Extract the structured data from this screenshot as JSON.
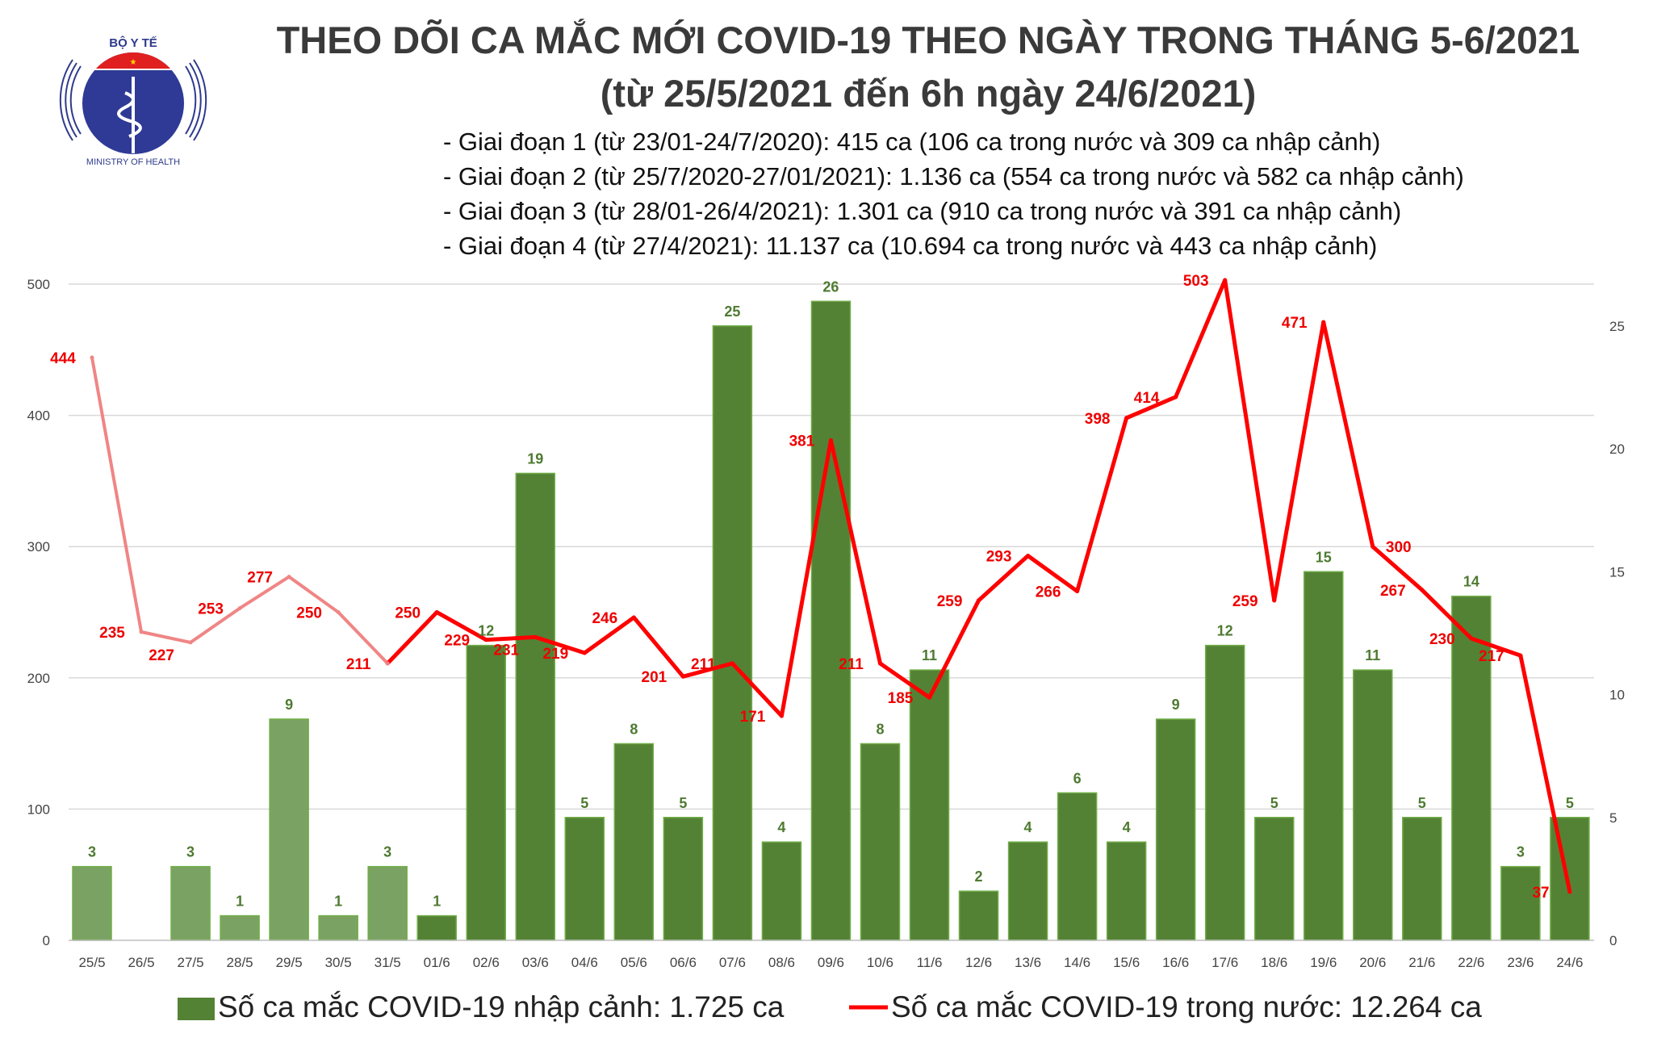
{
  "header": {
    "logo": {
      "top_text": "BỘ Y TẾ",
      "bottom_text": "MINISTRY OF HEALTH"
    },
    "title": "THEO DÕI CA MẮC MỚI COVID-19 THEO NGÀY TRONG THÁNG 5-6/2021",
    "subtitle": "(từ 25/5/2021 đến 6h ngày 24/6/2021)",
    "phases": [
      "- Giai đoạn 1 (từ 23/01-24/7/2020): 415 ca (106 ca trong nước và 309 ca nhập cảnh)",
      "- Giai đoạn 2 (từ 25/7/2020-27/01/2021): 1.136 ca (554 ca trong nước và 582 ca nhập cảnh)",
      "- Giai đoạn 3 (từ 28/01-26/4/2021): 1.301 ca (910 ca trong nước và 391 ca nhập cảnh)",
      "- Giai đoạn 4 (từ 27/4/2021): 11.137 ca (10.694 ca trong nước và 443 ca nhập cảnh)"
    ]
  },
  "chart_data": {
    "type": "bar+line",
    "categories": [
      "25/5",
      "26/5",
      "27/5",
      "28/5",
      "29/5",
      "30/5",
      "31/5",
      "01/6",
      "02/6",
      "03/6",
      "04/6",
      "05/6",
      "06/6",
      "07/6",
      "08/6",
      "09/6",
      "10/6",
      "11/6",
      "12/6",
      "13/6",
      "14/6",
      "15/6",
      "16/6",
      "17/6",
      "18/6",
      "19/6",
      "20/6",
      "21/6",
      "22/6",
      "23/6",
      "24/6"
    ],
    "series": [
      {
        "name": "Số ca mắc COVID-19 nhập cảnh: 1.725 ca",
        "type": "bar",
        "axis": "right",
        "color": "#548235",
        "values": [
          3,
          0,
          3,
          1,
          9,
          1,
          3,
          1,
          12,
          19,
          5,
          8,
          5,
          25,
          4,
          26,
          8,
          11,
          2,
          4,
          6,
          4,
          9,
          12,
          5,
          15,
          11,
          5,
          14,
          3,
          5
        ]
      },
      {
        "name": "Số ca mắc COVID-19 trong nước: 12.264 ca",
        "type": "line",
        "axis": "left",
        "color": "#ff0000",
        "values": [
          444,
          235,
          227,
          253,
          277,
          250,
          211,
          250,
          229,
          231,
          219,
          246,
          201,
          211,
          171,
          381,
          211,
          185,
          259,
          293,
          266,
          398,
          414,
          503,
          259,
          471,
          300,
          267,
          230,
          217,
          37
        ]
      }
    ],
    "left_axis": {
      "ticks": [
        0,
        100,
        200,
        300,
        400,
        500
      ],
      "range": [
        0,
        500
      ]
    },
    "right_axis": {
      "ticks": [
        0,
        5,
        10,
        15,
        20,
        25
      ],
      "range": [
        0,
        26.7
      ]
    },
    "faded_first_n": 7,
    "faded_colors": {
      "bar": "#7aa363",
      "line": "#f08585"
    },
    "grid": true,
    "legend": "bottom"
  }
}
